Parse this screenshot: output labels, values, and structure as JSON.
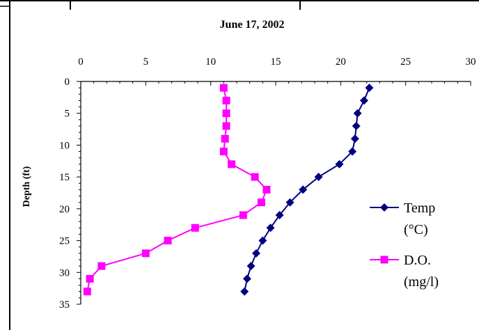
{
  "chart_data": {
    "type": "line",
    "title": "June 17, 2002",
    "xlabel": "",
    "ylabel": "Depth (ft)",
    "xlim": [
      0,
      30
    ],
    "ylim": [
      0,
      35
    ],
    "y_inverted": true,
    "x_axis_position": "top",
    "x_ticks": [
      0,
      5,
      10,
      15,
      20,
      25,
      30
    ],
    "y_ticks": [
      0,
      5,
      10,
      15,
      20,
      25,
      30,
      35
    ],
    "grid": false,
    "legend_position": "right",
    "series": [
      {
        "name": "Temp",
        "name_line2": "(°C)",
        "color": "#000080",
        "marker": "diamond",
        "points": [
          [
            22.2,
            1
          ],
          [
            21.8,
            3
          ],
          [
            21.3,
            5
          ],
          [
            21.2,
            7
          ],
          [
            21.1,
            9
          ],
          [
            20.9,
            11
          ],
          [
            19.9,
            13
          ],
          [
            18.3,
            15
          ],
          [
            17.1,
            17
          ],
          [
            16.1,
            19
          ],
          [
            15.3,
            21
          ],
          [
            14.6,
            23
          ],
          [
            14.0,
            25
          ],
          [
            13.5,
            27
          ],
          [
            13.1,
            29
          ],
          [
            12.8,
            31
          ],
          [
            12.6,
            33
          ]
        ]
      },
      {
        "name": "D.O.",
        "name_line2": "(mg/l)",
        "color": "#ff00ff",
        "marker": "square",
        "points": [
          [
            11.0,
            1
          ],
          [
            11.2,
            3
          ],
          [
            11.2,
            5
          ],
          [
            11.2,
            7
          ],
          [
            11.1,
            9
          ],
          [
            11.0,
            11
          ],
          [
            11.6,
            13
          ],
          [
            13.4,
            15
          ],
          [
            14.3,
            17
          ],
          [
            13.9,
            19
          ],
          [
            12.5,
            21
          ],
          [
            8.8,
            23
          ],
          [
            6.7,
            25
          ],
          [
            5.0,
            27
          ],
          [
            1.6,
            29
          ],
          [
            0.7,
            31
          ],
          [
            0.5,
            33
          ]
        ]
      }
    ]
  }
}
